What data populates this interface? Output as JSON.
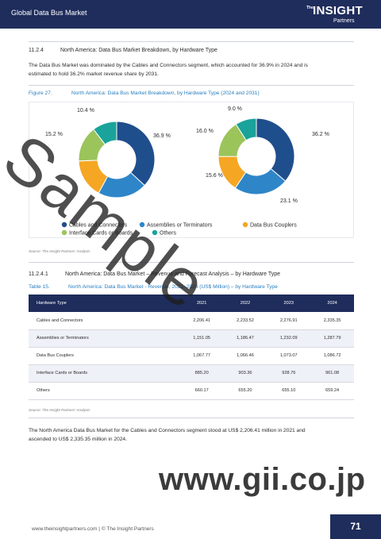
{
  "header": {
    "title": "Global Data Bus Market"
  },
  "logo": {
    "the": "The",
    "insight": "INSIGHT",
    "partners": "Partners"
  },
  "section": {
    "number": "11.2.4",
    "title": "North America: Data Bus Market Breakdown, by Hardware Type",
    "paragraph_lines": [
      "The Data Bus Market was dominated by the Cables and Connectors segment, which accounted for 36.9% in 2024 and is",
      "estimated to hold 36.2% market revenue share by 2031."
    ]
  },
  "figure": {
    "label": "Figure 27.",
    "title": "North America: Data Bus Market Breakdown, by Hardware Type (2024 and 2031)",
    "source": "Source: The Insight Partners' Analysis"
  },
  "chart_data": [
    {
      "type": "pie",
      "categories": [
        "Cables and Connectors",
        "Assemblies or Terminators",
        "Data Bus Couplers",
        "Interface Cards or Boards",
        "Others"
      ],
      "values": [
        36.9,
        21.0,
        16.5,
        15.2,
        10.4
      ],
      "value_labels": [
        "36.9 %",
        "",
        "",
        "15.2 %",
        "10.4 %"
      ],
      "colors": [
        "#1f4e8c",
        "#2e86c8",
        "#f5a623",
        "#9bc45b",
        "#1aa39a"
      ]
    },
    {
      "type": "pie",
      "categories": [
        "Cables and Connectors",
        "Assemblies or Terminators",
        "Data Bus Couplers",
        "Interface Cards or Boards",
        "Others"
      ],
      "values": [
        36.2,
        23.1,
        15.6,
        16.0,
        9.0
      ],
      "value_labels": [
        "36.2 %",
        "23.1 %",
        "15.6 %",
        "16.0 %",
        "9.0 %"
      ],
      "colors": [
        "#1f4e8c",
        "#2e86c8",
        "#f5a623",
        "#9bc45b",
        "#1aa39a"
      ]
    }
  ],
  "legend": {
    "items": [
      {
        "label": "Cables and Connectors",
        "color": "#1f4e8c"
      },
      {
        "label": "Assemblies or Terminators",
        "color": "#2e86c8"
      },
      {
        "label": "Data Bus Couplers",
        "color": "#f5a623"
      },
      {
        "label": "Interface Cards or Boards",
        "color": "#9bc45b"
      },
      {
        "label": "Others",
        "color": "#1aa39a"
      }
    ]
  },
  "subsection": {
    "number": "11.2.4.1",
    "title": "North America: Data Bus Market – Revenue and Forecast Analysis – by Hardware Type"
  },
  "table": {
    "label": "Table 15.",
    "title": "North America: Data Bus Market - Revenue, 2021–2024 (US$ Million) – by Hardware Type",
    "headers": [
      "Hardware Type",
      "2021",
      "2022",
      "2023",
      "2024"
    ],
    "rows": [
      [
        "Cables and Connectors",
        "2,206.41",
        "2,233.52",
        "2,276.91",
        "2,335.35"
      ],
      [
        "Assemblies or Terminators",
        "1,151.05",
        "1,186.47",
        "1,232.09",
        "1,287.79"
      ],
      [
        "Data Bus Couplers",
        "1,067.77",
        "1,066.46",
        "1,073.07",
        "1,086.72"
      ],
      [
        "Interface Cards or Boards",
        "885.20",
        "903.36",
        "928.76",
        "961.08"
      ],
      [
        "Others",
        "660.17",
        "655.20",
        "655.10",
        "659.24"
      ]
    ],
    "source": "Source: The Insight Partners' Analysis"
  },
  "closing_paragraph_lines": [
    "The North America Data Bus Market for the Cables and Connectors segment stood at US$ 2,206.41 million in 2021 and",
    "ascended to US$ 2,335.35 million in 2024."
  ],
  "watermark": {
    "text": "Sample",
    "url": "www.gii.co.jp"
  },
  "footer": {
    "url": "www.theinsightpartners.com  |  © The Insight Partners",
    "page": "71"
  }
}
